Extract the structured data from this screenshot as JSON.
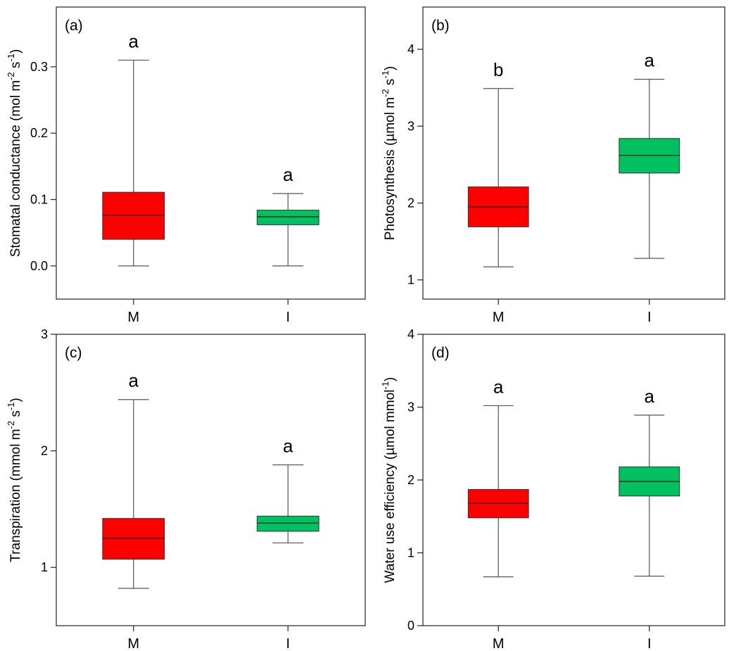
{
  "chart_data": [
    {
      "id": "a",
      "type": "boxplot",
      "panel_label": "(a)",
      "ylabel": "Stomatal conductance (mol m",
      "ylabel_sup1": "-2",
      "ylabel_mid": " s",
      "ylabel_sup2": "-1",
      "ylabel_end": ")",
      "ylim": [
        -0.05,
        0.39
      ],
      "yticks": [
        0.0,
        0.1,
        0.2,
        0.3
      ],
      "ytick_labels": [
        "0.0",
        "0.1",
        "0.2",
        "0.3"
      ],
      "categories": [
        "M",
        "I"
      ],
      "colors": [
        "#ff0000",
        "#00c060"
      ],
      "boxes": [
        {
          "category": "M",
          "min": 0.0,
          "q1": 0.04,
          "median": 0.076,
          "q3": 0.111,
          "max": 0.31,
          "letter": "a"
        },
        {
          "category": "I",
          "min": 0.0,
          "q1": 0.062,
          "median": 0.074,
          "q3": 0.084,
          "max": 0.109,
          "letter": "a"
        }
      ]
    },
    {
      "id": "b",
      "type": "boxplot",
      "panel_label": "(b)",
      "ylabel": "Photosynthesis (µmol m",
      "ylabel_sup1": "-2",
      "ylabel_mid": " s",
      "ylabel_sup2": "-1",
      "ylabel_end": ")",
      "ylim": [
        0.75,
        4.55
      ],
      "yticks": [
        1,
        2,
        3,
        4
      ],
      "ytick_labels": [
        "1",
        "2",
        "3",
        "4"
      ],
      "categories": [
        "M",
        "I"
      ],
      "colors": [
        "#ff0000",
        "#00c060"
      ],
      "boxes": [
        {
          "category": "M",
          "min": 1.17,
          "q1": 1.69,
          "median": 1.95,
          "q3": 2.21,
          "max": 3.49,
          "letter": "b"
        },
        {
          "category": "I",
          "min": 1.28,
          "q1": 2.39,
          "median": 2.62,
          "q3": 2.84,
          "max": 3.61,
          "letter": "a"
        }
      ]
    },
    {
      "id": "c",
      "type": "boxplot",
      "panel_label": "(c)",
      "ylabel": "Transpiration (mmol m",
      "ylabel_sup1": "-2",
      "ylabel_mid": " s",
      "ylabel_sup2": "-1",
      "ylabel_end": ")",
      "ylim": [
        0.5,
        3.0
      ],
      "yticks": [
        1,
        2,
        3
      ],
      "ytick_labels": [
        "1",
        "2",
        "3"
      ],
      "categories": [
        "M",
        "I"
      ],
      "colors": [
        "#ff0000",
        "#00c060"
      ],
      "boxes": [
        {
          "category": "M",
          "min": 0.82,
          "q1": 1.07,
          "median": 1.25,
          "q3": 1.42,
          "max": 2.44,
          "letter": "a"
        },
        {
          "category": "I",
          "min": 1.21,
          "q1": 1.31,
          "median": 1.38,
          "q3": 1.44,
          "max": 1.88,
          "letter": "a"
        }
      ]
    },
    {
      "id": "d",
      "type": "boxplot",
      "panel_label": "(d)",
      "ylabel": "Water use efficiency (µmol mmol",
      "ylabel_sup1": "-1",
      "ylabel_mid": "",
      "ylabel_sup2": "",
      "ylabel_end": ")",
      "ylim": [
        0,
        4
      ],
      "yticks": [
        0,
        1,
        2,
        3,
        4
      ],
      "ytick_labels": [
        "0",
        "1",
        "2",
        "3",
        "4"
      ],
      "categories": [
        "M",
        "I"
      ],
      "colors": [
        "#ff0000",
        "#00c060"
      ],
      "boxes": [
        {
          "category": "M",
          "min": 0.67,
          "q1": 1.48,
          "median": 1.68,
          "q3": 1.87,
          "max": 3.02,
          "letter": "a"
        },
        {
          "category": "I",
          "min": 0.68,
          "q1": 1.78,
          "median": 1.98,
          "q3": 2.18,
          "max": 2.89,
          "letter": "a"
        }
      ]
    }
  ]
}
